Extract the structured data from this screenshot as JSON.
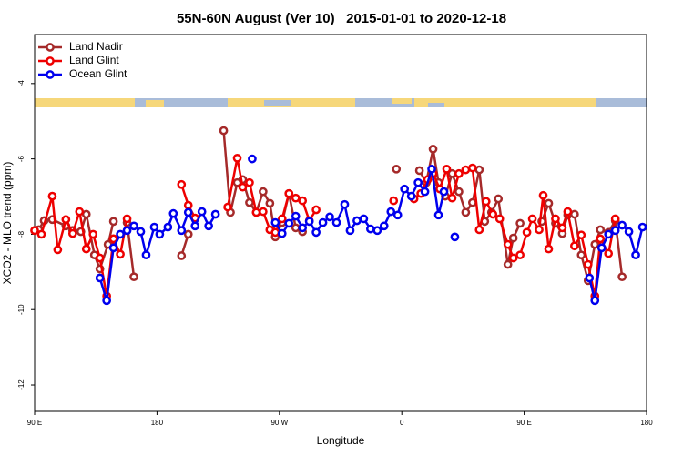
{
  "chart_data": {
    "type": "line",
    "title": "55N-60N August (Ver 10)   2015-01-01 to 2020-12-18",
    "x_label": "Longitude",
    "y_label": "XCO2 - MLO trend (ppm)",
    "xlim": [
      90,
      540
    ],
    "xticks": [
      {
        "value": 90,
        "label": "90 E"
      },
      180,
      {
        "value": 270,
        "label": "90 W"
      },
      {
        "value": 360,
        "label": "0"
      },
      {
        "value": 450,
        "label": "90 E"
      },
      {
        "value": 540,
        "label": "180"
      }
    ],
    "ylim": [
      -12.7,
      -2.7
    ],
    "yticks": [
      -4,
      -6,
      -8,
      -10,
      -12
    ],
    "grid": false,
    "legend": "top-left",
    "series": [
      {
        "name": "Land Nadir",
        "color": "#a52a2a",
        "x": [
          93,
          97,
          103,
          113,
          118,
          124,
          128,
          134,
          138,
          144,
          148,
          null,
          158,
          163,
          null,
          198,
          203,
          null,
          229,
          234,
          239,
          243,
          248,
          253,
          258,
          263,
          267,
          272,
          277,
          282,
          287,
          null,
          356,
          null,
          373,
          378,
          383,
          387,
          392,
          397,
          402,
          407,
          412,
          417,
          421,
          426,
          431,
          438,
          442,
          447,
          null,
          463,
          468,
          473,
          478,
          482,
          487,
          492,
          497,
          502,
          506,
          512,
          517,
          522
        ],
        "values": [
          -7.88,
          -7.64,
          -7.61,
          -7.78,
          -7.9,
          -7.93,
          -7.47,
          -8.55,
          -8.92,
          -8.27,
          -7.66,
          null,
          -7.69,
          -9.13,
          null,
          -8.57,
          -8.0,
          null,
          -5.25,
          -7.42,
          -6.63,
          -6.55,
          -7.16,
          -7.42,
          -6.87,
          -7.18,
          -8.07,
          -7.69,
          -6.92,
          -7.83,
          -7.93,
          null,
          -6.27,
          null,
          -6.31,
          -6.63,
          -5.74,
          -6.63,
          -6.99,
          -6.39,
          -6.87,
          -7.42,
          -7.16,
          -6.29,
          -7.66,
          -7.42,
          -7.06,
          -8.8,
          -8.1,
          -7.71,
          null,
          -7.66,
          -7.18,
          -7.71,
          -7.98,
          -7.49,
          -7.47,
          -8.55,
          -9.23,
          -8.27,
          -7.88,
          -7.95,
          -7.64,
          -9.13
        ]
      },
      {
        "name": "Land Glint",
        "color": "#ee0000",
        "x": [
          90,
          95,
          103,
          107,
          113,
          118,
          123,
          128,
          133,
          138,
          143,
          148,
          153,
          158,
          null,
          198,
          203,
          208,
          null,
          232,
          239,
          243,
          248,
          253,
          258,
          263,
          267,
          272,
          277,
          282,
          287,
          292,
          297,
          null,
          354,
          null,
          369,
          374,
          379,
          383,
          388,
          393,
          397,
          402,
          407,
          412,
          417,
          422,
          427,
          432,
          438,
          442,
          447,
          452,
          456,
          461,
          464,
          468,
          473,
          478,
          482,
          487,
          492,
          497,
          502,
          506,
          512,
          517
        ],
        "values": [
          -7.9,
          -8.0,
          -6.99,
          -8.41,
          -7.61,
          -7.98,
          -7.4,
          -8.39,
          -8.0,
          -8.63,
          -9.64,
          -8.12,
          -8.53,
          -7.59,
          null,
          -6.68,
          -7.23,
          -7.57,
          null,
          -7.28,
          -5.98,
          -6.75,
          -6.63,
          -7.42,
          -7.4,
          -7.88,
          -7.95,
          -7.59,
          -6.92,
          -7.04,
          -7.11,
          -7.64,
          -7.35,
          null,
          -7.11,
          null,
          -7.06,
          -6.92,
          -6.55,
          -6.39,
          -6.8,
          -6.27,
          -7.04,
          -6.39,
          -6.29,
          -6.24,
          -7.88,
          -7.13,
          -7.47,
          -7.59,
          -8.27,
          -8.63,
          -8.55,
          -7.95,
          -7.59,
          -7.88,
          -6.97,
          -8.39,
          -7.59,
          -7.83,
          -7.4,
          -8.31,
          -8.02,
          -8.8,
          -9.64,
          -8.12,
          -8.51,
          -7.59
        ]
      },
      {
        "name": "Ocean Glint",
        "color": "#0000ee",
        "x": [
          138,
          143,
          148,
          153,
          158,
          163,
          168,
          172,
          178,
          182,
          188,
          192,
          198,
          203,
          208,
          213,
          218,
          223,
          null,
          250,
          null,
          267,
          272,
          277,
          282,
          287,
          292,
          297,
          302,
          307,
          312,
          318,
          322,
          327,
          332,
          337,
          342,
          347,
          352,
          357,
          362,
          367,
          372,
          377,
          382,
          387,
          391,
          null,
          399,
          null,
          498,
          502,
          507,
          512,
          517,
          522,
          527,
          532,
          537
        ],
        "values": [
          -9.16,
          -9.76,
          -8.36,
          -8.0,
          -7.9,
          -7.78,
          -7.93,
          -8.55,
          -7.81,
          -8.0,
          -7.81,
          -7.45,
          -7.9,
          -7.42,
          -7.78,
          -7.4,
          -7.78,
          -7.47,
          null,
          -6.0,
          null,
          -7.69,
          -7.98,
          -7.71,
          -7.52,
          -7.83,
          -7.66,
          -7.95,
          -7.69,
          -7.54,
          -7.69,
          -7.21,
          -7.9,
          -7.64,
          -7.59,
          -7.86,
          -7.9,
          -7.78,
          -7.4,
          -7.49,
          -6.8,
          -6.99,
          -6.63,
          -6.87,
          -6.27,
          -7.49,
          -6.87,
          null,
          -8.07,
          null,
          -9.16,
          -9.76,
          -8.36,
          -8.0,
          -7.9,
          -7.76,
          -7.93,
          -8.55,
          -7.81
        ]
      }
    ]
  }
}
